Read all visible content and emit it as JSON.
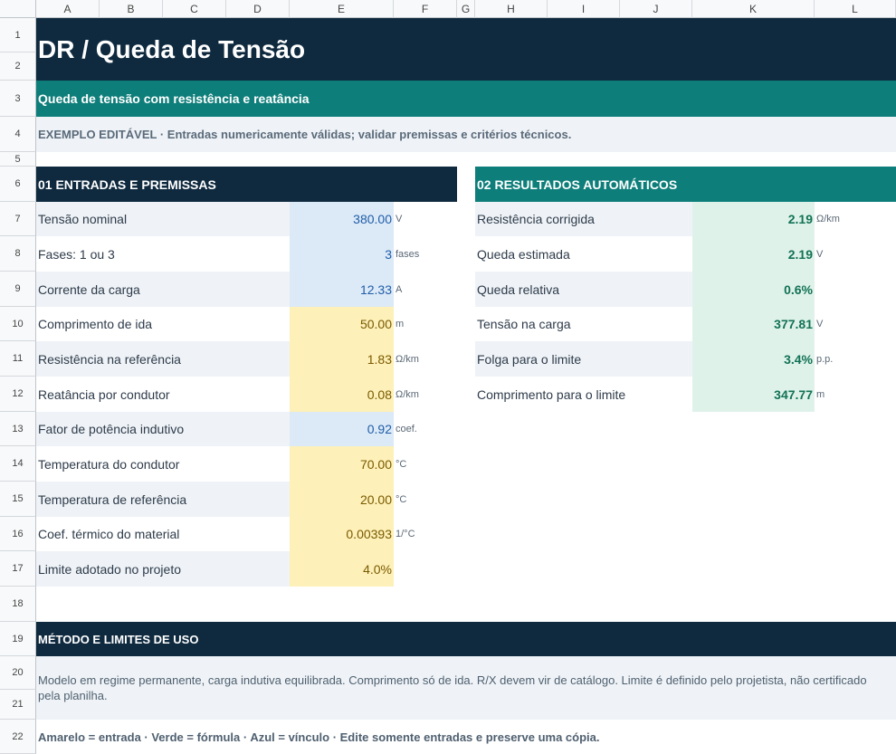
{
  "columns": [
    "A",
    "B",
    "C",
    "D",
    "E",
    "F",
    "G",
    "H",
    "I",
    "J",
    "K",
    "L"
  ],
  "rows": [
    "1",
    "2",
    "3",
    "4",
    "5",
    "6",
    "7",
    "8",
    "9",
    "10",
    "11",
    "12",
    "13",
    "14",
    "15",
    "16",
    "17",
    "18",
    "19",
    "20",
    "21",
    "22"
  ],
  "title": "DR  /  Queda de Tensão",
  "subtitle": "Queda de tensão com resistência e reatância",
  "notice": "EXEMPLO EDITÁVEL · Entradas numericamente válidas; validar premissas e critérios técnicos.",
  "inputs": {
    "header": "01  ENTRADAS E PREMISSAS",
    "items": [
      {
        "label": "Tensão nominal",
        "value": "380.00",
        "unit": "V",
        "kind": "blue"
      },
      {
        "label": "Fases: 1 ou 3",
        "value": "3",
        "unit": "fases",
        "kind": "blue"
      },
      {
        "label": "Corrente da carga",
        "value": "12.33",
        "unit": "A",
        "kind": "blue"
      },
      {
        "label": "Comprimento de ida",
        "value": "50.00",
        "unit": "m",
        "kind": "yellow"
      },
      {
        "label": "Resistência na referência",
        "value": "1.83",
        "unit": "Ω/km",
        "kind": "yellow"
      },
      {
        "label": "Reatância por condutor",
        "value": "0.08",
        "unit": "Ω/km",
        "kind": "yellow"
      },
      {
        "label": "Fator de potência indutivo",
        "value": "0.92",
        "unit": "coef.",
        "kind": "blue"
      },
      {
        "label": "Temperatura do condutor",
        "value": "70.00",
        "unit": "°C",
        "kind": "yellow"
      },
      {
        "label": "Temperatura de referência",
        "value": "20.00",
        "unit": "°C",
        "kind": "yellow"
      },
      {
        "label": "Coef. térmico do material",
        "value": "0.00393",
        "unit": "1/°C",
        "kind": "yellow"
      },
      {
        "label": "Limite adotado no projeto",
        "value": "4.0%",
        "unit": "",
        "kind": "yellow"
      }
    ]
  },
  "results": {
    "header": "02  RESULTADOS AUTOMÁTICOS",
    "items": [
      {
        "label": "Resistência corrigida",
        "value": "2.19",
        "unit": "Ω/km"
      },
      {
        "label": "Queda estimada",
        "value": "2.19",
        "unit": "V"
      },
      {
        "label": "Queda relativa",
        "value": "0.6%",
        "unit": ""
      },
      {
        "label": "Tensão na carga",
        "value": "377.81",
        "unit": "V"
      },
      {
        "label": "Folga para o limite",
        "value": "3.4%",
        "unit": "p.p."
      },
      {
        "label": "Comprimento para o limite",
        "value": "347.77",
        "unit": "m"
      }
    ]
  },
  "method": {
    "header": "MÉTODO E LIMITES DE USO",
    "text": "Modelo em regime permanente, carga indutiva equilibrada. Comprimento só de ida. R/X devem vir de catálogo. Limite é definido pelo projetista, não certificado pela planilha.",
    "legend": "Amarelo = entrada · Verde = fórmula · Azul = vínculo · Edite somente entradas e preserve uma cópia."
  },
  "colors": {
    "navy": "#0f2a3f",
    "teal": "#0e7e7a",
    "input_blue": "#dce9f7",
    "input_yellow": "#fdf0b8",
    "formula_green": "#dff2ea"
  }
}
